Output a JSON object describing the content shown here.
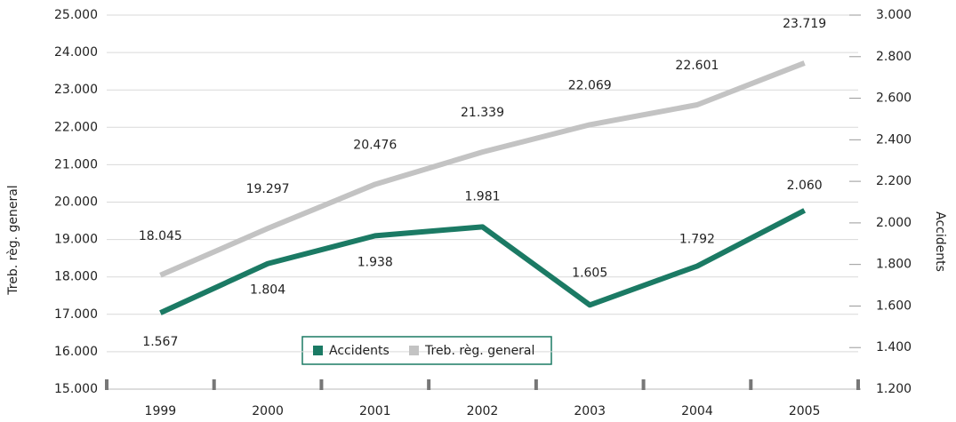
{
  "chart_data": {
    "type": "line",
    "categories": [
      "1999",
      "2000",
      "2001",
      "2002",
      "2003",
      "2004",
      "2005"
    ],
    "series": [
      {
        "name": "Accidents",
        "color": "#1b7a64",
        "axis": "y2",
        "values": [
          1567,
          1804,
          1938,
          1981,
          1605,
          1792,
          2060
        ],
        "value_labels": [
          "1.567",
          "1.804",
          "1.938",
          "1.981",
          "1.605",
          "1.792",
          "2.060"
        ]
      },
      {
        "name": "Treb. règ. general",
        "color": "#c3c3c3",
        "values": [
          18045,
          19297,
          20476,
          21339,
          22069,
          22601,
          23719
        ],
        "value_labels": [
          "18.045",
          "19.297",
          "20.476",
          "21.339",
          "22.069",
          "22.601",
          "23.719"
        ]
      }
    ],
    "ylabel": "Treb. règ. general",
    "y2label": "Accidents",
    "ylim": [
      15000,
      25000
    ],
    "yticks": [
      {
        "value": 15000,
        "label": "15.000"
      },
      {
        "value": 16000,
        "label": "16.000"
      },
      {
        "value": 17000,
        "label": "17.000"
      },
      {
        "value": 18000,
        "label": "18.000"
      },
      {
        "value": 19000,
        "label": "19.000"
      },
      {
        "value": 20000,
        "label": "20.000"
      },
      {
        "value": 21000,
        "label": "21.000"
      },
      {
        "value": 22000,
        "label": "22.000"
      },
      {
        "value": 23000,
        "label": "23.000"
      },
      {
        "value": 24000,
        "label": "24.000"
      },
      {
        "value": 25000,
        "label": "25.000"
      }
    ],
    "y2lim": [
      1200,
      3000
    ],
    "y2ticks": [
      {
        "value": 1200,
        "label": "1.200"
      },
      {
        "value": 1400,
        "label": "1.400"
      },
      {
        "value": 1600,
        "label": "1.600"
      },
      {
        "value": 1800,
        "label": "1.800"
      },
      {
        "value": 2000,
        "label": "2.000"
      },
      {
        "value": 2200,
        "label": "2.200"
      },
      {
        "value": 2400,
        "label": "2.400"
      },
      {
        "value": 2600,
        "label": "2.600"
      },
      {
        "value": 2800,
        "label": "2.800"
      },
      {
        "value": 3000,
        "label": "3.000"
      }
    ],
    "grid": true,
    "legend": "bottom"
  }
}
